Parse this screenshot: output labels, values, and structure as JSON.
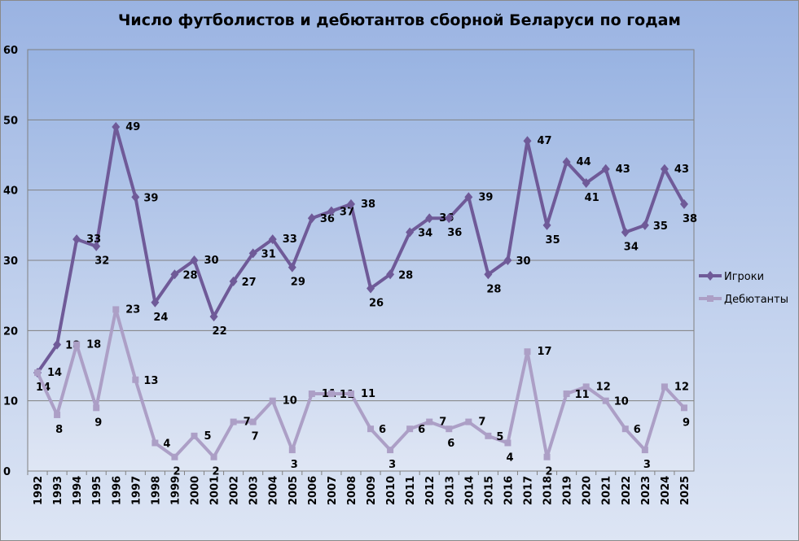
{
  "chart_data": {
    "type": "line",
    "title": "Число футболистов и дебютантов сборной Беларуси по годам",
    "xlabel": "",
    "ylabel": "",
    "ylim": [
      0,
      60
    ],
    "yticks": [
      0,
      10,
      20,
      30,
      40,
      50,
      60
    ],
    "grid": true,
    "legend_position": "right",
    "categories": [
      "1992",
      "1993",
      "1994",
      "1995",
      "1996",
      "1997",
      "1998",
      "1999",
      "2000",
      "2001",
      "2002",
      "2003",
      "2004",
      "2005",
      "2006",
      "2007",
      "2008",
      "2009",
      "2010",
      "2011",
      "2012",
      "2013",
      "2014",
      "2015",
      "2016",
      "2017",
      "2018",
      "2019",
      "2020",
      "2021",
      "2022",
      "2023",
      "2024",
      "2025"
    ],
    "series": [
      {
        "name": "Игроки",
        "color": "#6f5a98",
        "marker": "diamond",
        "values": [
          14,
          18,
          33,
          32,
          49,
          39,
          24,
          28,
          30,
          22,
          27,
          31,
          33,
          29,
          36,
          37,
          38,
          26,
          28,
          34,
          36,
          36,
          39,
          28,
          30,
          47,
          35,
          44,
          41,
          43,
          34,
          35,
          43,
          38
        ]
      },
      {
        "name": "Дебютанты",
        "color": "#ac9fc6",
        "marker": "square",
        "values": [
          14,
          8,
          18,
          9,
          23,
          13,
          4,
          2,
          5,
          2,
          7,
          7,
          10,
          3,
          11,
          11,
          11,
          6,
          3,
          6,
          7,
          6,
          7,
          5,
          4,
          17,
          2,
          11,
          12,
          10,
          6,
          3,
          12,
          9
        ]
      }
    ]
  }
}
